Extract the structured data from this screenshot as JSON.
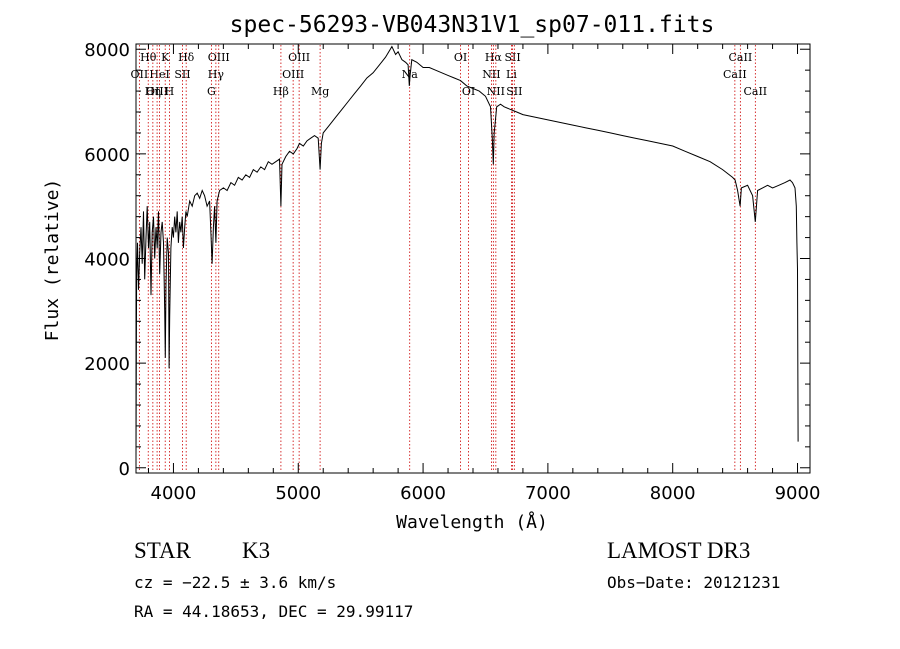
{
  "chart_data": {
    "type": "line",
    "title": "spec-56293-VB043N31V1_sp07-011.fits",
    "xlabel": "Wavelength (Å)",
    "ylabel": "Flux (relative)",
    "xlim": [
      3700,
      9100
    ],
    "ylim": [
      -100,
      8100
    ],
    "xticks": [
      4000,
      5000,
      6000,
      7000,
      8000,
      9000
    ],
    "yticks": [
      0,
      2000,
      4000,
      6000,
      8000
    ],
    "x_minor_step": 200,
    "y_minor_step": 400,
    "line_color": "#000000",
    "marker_color": "#cc0000",
    "series": [
      {
        "name": "flux",
        "points": [
          [
            3700,
            200
          ],
          [
            3705,
            3600
          ],
          [
            3712,
            4300
          ],
          [
            3720,
            3400
          ],
          [
            3730,
            4100
          ],
          [
            3740,
            4600
          ],
          [
            3750,
            3900
          ],
          [
            3760,
            4900
          ],
          [
            3770,
            3600
          ],
          [
            3780,
            4400
          ],
          [
            3790,
            5000
          ],
          [
            3800,
            4200
          ],
          [
            3810,
            4700
          ],
          [
            3820,
            3300
          ],
          [
            3830,
            4500
          ],
          [
            3840,
            4800
          ],
          [
            3850,
            4000
          ],
          [
            3860,
            4600
          ],
          [
            3870,
            4200
          ],
          [
            3880,
            4900
          ],
          [
            3890,
            3700
          ],
          [
            3900,
            4500
          ],
          [
            3910,
            4700
          ],
          [
            3920,
            4300
          ],
          [
            3930,
            3000
          ],
          [
            3935,
            2100
          ],
          [
            3940,
            3500
          ],
          [
            3950,
            4400
          ],
          [
            3960,
            4100
          ],
          [
            3965,
            1900
          ],
          [
            3970,
            2900
          ],
          [
            3980,
            4200
          ],
          [
            3990,
            4600
          ],
          [
            4000,
            4400
          ],
          [
            4010,
            4800
          ],
          [
            4020,
            4500
          ],
          [
            4030,
            4900
          ],
          [
            4040,
            4300
          ],
          [
            4050,
            4700
          ],
          [
            4060,
            4500
          ],
          [
            4070,
            4800
          ],
          [
            4080,
            4200
          ],
          [
            4090,
            4600
          ],
          [
            4100,
            4900
          ],
          [
            4110,
            4800
          ],
          [
            4130,
            5100
          ],
          [
            4150,
            5000
          ],
          [
            4170,
            5200
          ],
          [
            4190,
            5250
          ],
          [
            4210,
            5150
          ],
          [
            4230,
            5300
          ],
          [
            4250,
            5200
          ],
          [
            4270,
            5000
          ],
          [
            4290,
            5100
          ],
          [
            4300,
            4500
          ],
          [
            4310,
            3900
          ],
          [
            4320,
            4600
          ],
          [
            4330,
            5000
          ],
          [
            4340,
            4300
          ],
          [
            4350,
            5100
          ],
          [
            4370,
            5300
          ],
          [
            4400,
            5350
          ],
          [
            4430,
            5300
          ],
          [
            4460,
            5450
          ],
          [
            4490,
            5400
          ],
          [
            4520,
            5550
          ],
          [
            4550,
            5500
          ],
          [
            4580,
            5600
          ],
          [
            4610,
            5550
          ],
          [
            4640,
            5700
          ],
          [
            4670,
            5650
          ],
          [
            4700,
            5750
          ],
          [
            4730,
            5700
          ],
          [
            4760,
            5850
          ],
          [
            4790,
            5800
          ],
          [
            4820,
            5850
          ],
          [
            4850,
            5900
          ],
          [
            4861,
            5000
          ],
          [
            4870,
            5800
          ],
          [
            4900,
            5950
          ],
          [
            4930,
            6050
          ],
          [
            4960,
            6000
          ],
          [
            4990,
            6100
          ],
          [
            5010,
            6200
          ],
          [
            5040,
            6150
          ],
          [
            5070,
            6250
          ],
          [
            5100,
            6300
          ],
          [
            5130,
            6350
          ],
          [
            5160,
            6300
          ],
          [
            5175,
            5700
          ],
          [
            5185,
            6200
          ],
          [
            5200,
            6400
          ],
          [
            5250,
            6550
          ],
          [
            5300,
            6700
          ],
          [
            5350,
            6850
          ],
          [
            5400,
            7000
          ],
          [
            5450,
            7150
          ],
          [
            5500,
            7300
          ],
          [
            5550,
            7450
          ],
          [
            5600,
            7550
          ],
          [
            5650,
            7700
          ],
          [
            5700,
            7850
          ],
          [
            5750,
            8050
          ],
          [
            5780,
            7900
          ],
          [
            5800,
            7950
          ],
          [
            5830,
            7800
          ],
          [
            5860,
            7750
          ],
          [
            5880,
            7700
          ],
          [
            5890,
            7300
          ],
          [
            5896,
            7500
          ],
          [
            5910,
            7800
          ],
          [
            5950,
            7750
          ],
          [
            6000,
            7650
          ],
          [
            6050,
            7650
          ],
          [
            6100,
            7600
          ],
          [
            6150,
            7550
          ],
          [
            6200,
            7500
          ],
          [
            6250,
            7450
          ],
          [
            6300,
            7400
          ],
          [
            6350,
            7300
          ],
          [
            6400,
            7250
          ],
          [
            6450,
            7200
          ],
          [
            6500,
            7100
          ],
          [
            6540,
            6900
          ],
          [
            6555,
            6300
          ],
          [
            6563,
            5800
          ],
          [
            6570,
            6400
          ],
          [
            6590,
            6900
          ],
          [
            6620,
            6950
          ],
          [
            6650,
            6900
          ],
          [
            6700,
            6850
          ],
          [
            6750,
            6800
          ],
          [
            6800,
            6750
          ],
          [
            6900,
            6700
          ],
          [
            7000,
            6650
          ],
          [
            7100,
            6600
          ],
          [
            7200,
            6550
          ],
          [
            7300,
            6500
          ],
          [
            7400,
            6450
          ],
          [
            7500,
            6400
          ],
          [
            7600,
            6350
          ],
          [
            7700,
            6300
          ],
          [
            7800,
            6250
          ],
          [
            7900,
            6200
          ],
          [
            8000,
            6150
          ],
          [
            8100,
            6050
          ],
          [
            8200,
            5950
          ],
          [
            8300,
            5850
          ],
          [
            8400,
            5700
          ],
          [
            8480,
            5550
          ],
          [
            8500,
            5500
          ],
          [
            8520,
            5300
          ],
          [
            8540,
            5000
          ],
          [
            8550,
            5350
          ],
          [
            8600,
            5400
          ],
          [
            8640,
            5200
          ],
          [
            8662,
            4700
          ],
          [
            8680,
            5300
          ],
          [
            8720,
            5350
          ],
          [
            8760,
            5400
          ],
          [
            8800,
            5350
          ],
          [
            8850,
            5400
          ],
          [
            8900,
            5450
          ],
          [
            8940,
            5500
          ],
          [
            8960,
            5450
          ],
          [
            8980,
            5350
          ],
          [
            8990,
            5000
          ],
          [
            8995,
            4300
          ],
          [
            9000,
            3800
          ],
          [
            9005,
            500
          ]
        ]
      }
    ],
    "line_markers": [
      {
        "label": "Hθ",
        "x": 3798,
        "row": 1
      },
      {
        "label": "K",
        "x": 3934,
        "row": 1
      },
      {
        "label": "Hδ",
        "x": 4102,
        "row": 1
      },
      {
        "label": "OIII",
        "x": 4363,
        "row": 1
      },
      {
        "label": "OIII",
        "x": 5007,
        "row": 1
      },
      {
        "label": "OI",
        "x": 6300,
        "row": 1
      },
      {
        "label": "Hα",
        "x": 6563,
        "row": 1
      },
      {
        "label": "SII",
        "x": 6717,
        "row": 1
      },
      {
        "label": "CaII",
        "x": 8542,
        "row": 1
      },
      {
        "label": "OII",
        "x": 3727,
        "row": 2
      },
      {
        "label": "HeI",
        "x": 3889,
        "row": 2
      },
      {
        "label": "SII",
        "x": 4072,
        "row": 2
      },
      {
        "label": "Hγ",
        "x": 4340,
        "row": 2
      },
      {
        "label": "OIII",
        "x": 4959,
        "row": 2
      },
      {
        "label": "Na",
        "x": 5893,
        "row": 2
      },
      {
        "label": "NII",
        "x": 6548,
        "row": 2
      },
      {
        "label": "Li",
        "x": 6708,
        "row": 2
      },
      {
        "label": "CaII",
        "x": 8498,
        "row": 2
      },
      {
        "label": "OIII",
        "x": 3869,
        "row": 3
      },
      {
        "label": "Hη",
        "x": 3835,
        "row": 3
      },
      {
        "label": "H",
        "x": 3968,
        "row": 3
      },
      {
        "label": "G",
        "x": 4304,
        "row": 3
      },
      {
        "label": "Hβ",
        "x": 4861,
        "row": 3
      },
      {
        "label": "Mg",
        "x": 5175,
        "row": 3
      },
      {
        "label": "OI",
        "x": 6364,
        "row": 3
      },
      {
        "label": "NII",
        "x": 6583,
        "row": 3
      },
      {
        "label": "SII",
        "x": 6731,
        "row": 3
      },
      {
        "label": "CaII",
        "x": 8662,
        "row": 3
      }
    ]
  },
  "info": {
    "object_class": "STAR",
    "subclass": "K3",
    "survey": "LAMOST DR3",
    "redshift": "cz = −22.5 ± 3.6 km/s",
    "obs_date": "Obs−Date: 20121231",
    "coords": "RA =  44.18653, DEC =  29.99117"
  }
}
